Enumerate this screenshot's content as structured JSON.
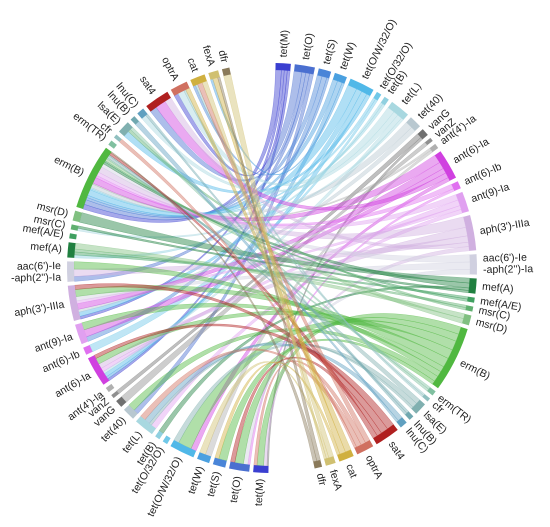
{
  "chart_data": {
    "type": "chord",
    "categories": [
      "tet(M)",
      "tet(O)",
      "tet(S)",
      "tet(W)",
      "tet(O/W/32/O)",
      "tet(O/32/O)",
      "tet(B)",
      "tet(L)",
      "tet(40)",
      "vanG",
      "vanZ",
      "ant(4')-Ia",
      "ant(6)-Ia",
      "ant(6)-Ib",
      "ant(9)-Ia",
      "aph(3')-IIIa",
      "aac(6')-Ie\n-aph(2'')-Ia",
      "mef(A)",
      "mef(A/E)",
      "msr(C)",
      "msr(D)",
      "erm(B)",
      "erm(TR)",
      "cfr",
      "lsa(E)",
      "lnu(B)",
      "lnu(C)",
      "sat4",
      "optrA",
      "cat",
      "fexA",
      "dfr"
    ],
    "colors": [
      "#3a3fd0",
      "#4a6fd0",
      "#4a85d8",
      "#4aa0e0",
      "#50b8e8",
      "#70c8e8",
      "#90d0e0",
      "#a8d8e0",
      "#b8c8d0",
      "#707070",
      "#909090",
      "#b0b0b0",
      "#d040e0",
      "#e070f0",
      "#e0a0f0",
      "#d0b0e0",
      "#d0d0e0",
      "#208040",
      "#40a060",
      "#60b070",
      "#80c080",
      "#50b840",
      "#80c0a0",
      "#90c0c0",
      "#80b0b0",
      "#70a8b0",
      "#60a0c0",
      "#b02020",
      "#d07060",
      "#d0b040",
      "#d0c070",
      "#8a7a5a"
    ],
    "values": [
      6,
      8,
      5,
      5,
      10,
      2,
      2,
      8,
      5,
      3,
      1.5,
      2,
      12,
      3,
      8,
      14,
      8,
      6,
      2,
      2,
      4,
      26,
      2,
      1.5,
      5,
      2,
      3,
      10,
      7,
      6,
      4,
      3
    ],
    "links": [
      [
        0,
        21,
        4
      ],
      [
        0,
        15,
        2
      ],
      [
        0,
        28,
        2
      ],
      [
        0,
        12,
        2
      ],
      [
        1,
        21,
        4
      ],
      [
        1,
        27,
        2
      ],
      [
        1,
        16,
        2
      ],
      [
        1,
        8,
        2
      ],
      [
        2,
        21,
        2
      ],
      [
        2,
        14,
        2
      ],
      [
        2,
        29,
        1
      ],
      [
        3,
        21,
        2
      ],
      [
        3,
        12,
        2
      ],
      [
        3,
        30,
        1
      ],
      [
        4,
        21,
        5
      ],
      [
        4,
        15,
        3
      ],
      [
        4,
        12,
        3
      ],
      [
        4,
        24,
        2
      ],
      [
        5,
        21,
        1
      ],
      [
        5,
        13,
        1
      ],
      [
        6,
        17,
        1
      ],
      [
        6,
        21,
        1
      ],
      [
        7,
        28,
        3
      ],
      [
        7,
        26,
        2
      ],
      [
        7,
        12,
        2
      ],
      [
        7,
        19,
        1
      ],
      [
        8,
        21,
        3
      ],
      [
        8,
        15,
        2
      ],
      [
        9,
        10,
        2
      ],
      [
        9,
        0,
        1
      ],
      [
        10,
        9,
        1
      ],
      [
        11,
        21,
        1
      ],
      [
        11,
        3,
        1
      ],
      [
        12,
        21,
        5
      ],
      [
        12,
        15,
        4
      ],
      [
        12,
        14,
        3
      ],
      [
        12,
        27,
        3
      ],
      [
        12,
        4,
        2
      ],
      [
        13,
        21,
        2
      ],
      [
        13,
        1,
        1
      ],
      [
        14,
        21,
        3
      ],
      [
        14,
        12,
        3
      ],
      [
        14,
        15,
        2
      ],
      [
        14,
        7,
        2
      ],
      [
        15,
        21,
        5
      ],
      [
        15,
        12,
        4
      ],
      [
        15,
        16,
        3
      ],
      [
        15,
        27,
        2
      ],
      [
        15,
        0,
        2
      ],
      [
        16,
        21,
        3
      ],
      [
        16,
        15,
        3
      ],
      [
        16,
        1,
        2
      ],
      [
        17,
        20,
        2
      ],
      [
        17,
        21,
        2
      ],
      [
        17,
        6,
        1
      ],
      [
        17,
        19,
        1
      ],
      [
        18,
        17,
        1
      ],
      [
        18,
        21,
        1
      ],
      [
        19,
        17,
        1
      ],
      [
        19,
        24,
        1
      ],
      [
        20,
        17,
        2
      ],
      [
        20,
        21,
        2
      ],
      [
        21,
        0,
        4
      ],
      [
        21,
        1,
        4
      ],
      [
        21,
        4,
        5
      ],
      [
        21,
        12,
        5
      ],
      [
        21,
        15,
        5
      ],
      [
        21,
        14,
        3
      ],
      [
        21,
        16,
        3
      ],
      [
        21,
        8,
        3
      ],
      [
        21,
        2,
        2
      ],
      [
        22,
        21,
        1
      ],
      [
        22,
        24,
        1
      ],
      [
        23,
        28,
        1
      ],
      [
        23,
        29,
        1
      ],
      [
        24,
        21,
        2
      ],
      [
        24,
        4,
        2
      ],
      [
        24,
        7,
        1
      ],
      [
        25,
        21,
        1
      ],
      [
        25,
        26,
        1
      ],
      [
        26,
        7,
        2
      ],
      [
        26,
        25,
        1
      ],
      [
        27,
        12,
        3
      ],
      [
        27,
        15,
        3
      ],
      [
        27,
        1,
        2
      ],
      [
        27,
        21,
        2
      ],
      [
        28,
        29,
        2
      ],
      [
        28,
        0,
        2
      ],
      [
        28,
        7,
        2
      ],
      [
        28,
        23,
        1
      ],
      [
        29,
        28,
        2
      ],
      [
        29,
        30,
        2
      ],
      [
        29,
        2,
        1
      ],
      [
        30,
        29,
        2
      ],
      [
        30,
        3,
        1
      ],
      [
        30,
        31,
        1
      ],
      [
        31,
        30,
        1
      ],
      [
        31,
        21,
        1
      ]
    ]
  }
}
